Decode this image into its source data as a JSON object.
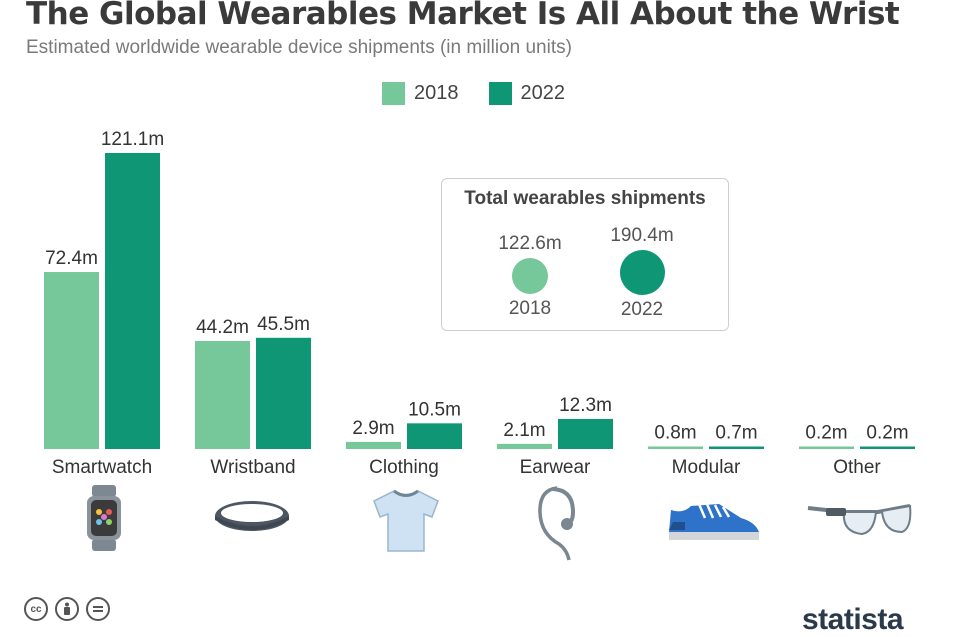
{
  "title": "The Global Wearables Market Is All About the Wrist",
  "subtitle": "Estimated worldwide wearable device shipments (in million units)",
  "brand": "statista",
  "colors": {
    "2018": "#76c799",
    "2022": "#0f9775",
    "text": "#333333",
    "box_border": "#cfcfcf"
  },
  "footer_icons": [
    "creative-commons-icon",
    "attribution-icon",
    "no-derivatives-icon"
  ],
  "totals_box": {
    "title": "Total wearables shipments",
    "items": [
      {
        "year": "2018",
        "value": 122.6,
        "label": "122.6m"
      },
      {
        "year": "2022",
        "value": 190.4,
        "label": "190.4m"
      }
    ]
  },
  "chart_data": {
    "type": "bar",
    "title": "The Global Wearables Market Is All About the Wrist",
    "subtitle": "Estimated worldwide wearable device shipments (in million units)",
    "xlabel": "",
    "ylabel": "",
    "ylim": [
      0,
      121.1
    ],
    "grid": false,
    "legend": "top-center",
    "categories": [
      "Smartwatch",
      "Wristband",
      "Clothing",
      "Earwear",
      "Modular",
      "Other"
    ],
    "category_icons": [
      "smartwatch-icon",
      "wristband-icon",
      "tshirt-icon",
      "earpiece-icon",
      "sneaker-icon",
      "smart-glasses-icon"
    ],
    "series": [
      {
        "name": "2018",
        "values": [
          72.4,
          44.2,
          2.9,
          2.1,
          0.8,
          0.2
        ],
        "labels": [
          "72.4m",
          "44.2m",
          "2.9m",
          "2.1m",
          "0.8m",
          "0.2m"
        ]
      },
      {
        "name": "2022",
        "values": [
          121.1,
          45.5,
          10.5,
          12.3,
          0.7,
          0.2
        ],
        "labels": [
          "121.1m",
          "45.5m",
          "10.5m",
          "12.3m",
          "0.7m",
          "0.2m"
        ]
      }
    ]
  }
}
